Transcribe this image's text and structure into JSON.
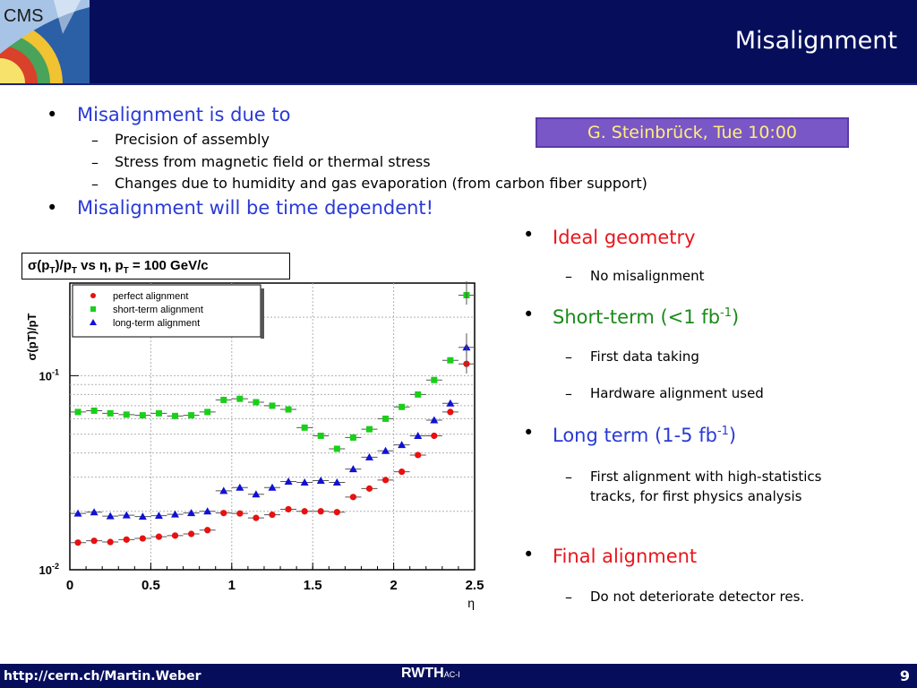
{
  "header": {
    "logo_text": "CMS",
    "title": "Misalignment"
  },
  "left": {
    "bullet1": "Misalignment is due to",
    "sub": [
      "Precision of assembly",
      "Stress from magnetic field or thermal stress",
      "Changes due to humidity and gas evaporation (from carbon fiber support)"
    ],
    "bullet2": "Misalignment will be time dependent!"
  },
  "tag": "G. Steinbrück, Tue 10:00",
  "right": {
    "items": [
      {
        "label": "Ideal geometry",
        "color": "#e8161c",
        "sub": [
          "No misalignment"
        ]
      },
      {
        "label": "Short-term (<1 fb-1)",
        "color": "#1a8a1a",
        "sub": [
          "First data taking",
          "Hardware alignment used"
        ]
      },
      {
        "label": "Long term (1-5 fb-1)",
        "color": "#2a3ad6",
        "sub": [
          "First alignment with high-statistics tracks, for first physics analysis"
        ]
      },
      {
        "label": "Final alignment",
        "color": "#e8161c",
        "sub": [
          "Do not deteriorate detector res."
        ]
      }
    ]
  },
  "plot_title": "σ(pT)/pT vs η, pT = 100 GeV/c",
  "chart_data": {
    "type": "scatter",
    "title": "σ(pT)/pT vs η, pT = 100 GeV/c",
    "xlabel": "η",
    "ylabel": "σ(pT)/pT",
    "xlim": [
      0,
      2.5
    ],
    "ylim": [
      0.01,
      0.3
    ],
    "yscale": "log",
    "xticks": [
      "0",
      "0.5",
      "1",
      "1.5",
      "2",
      "2.5"
    ],
    "yticks": [
      "10-2",
      "10-1"
    ],
    "grid": true,
    "legend": "top-left",
    "x": [
      0.05,
      0.15,
      0.25,
      0.35,
      0.45,
      0.55,
      0.65,
      0.75,
      0.85,
      0.95,
      1.05,
      1.15,
      1.25,
      1.35,
      1.45,
      1.55,
      1.65,
      1.75,
      1.85,
      1.95,
      2.05,
      2.15,
      2.25,
      2.35,
      2.45
    ],
    "series": [
      {
        "name": "perfect alignment",
        "color": "#e81010",
        "marker": "circle",
        "values": [
          0.0138,
          0.0141,
          0.0139,
          0.0143,
          0.0145,
          0.0148,
          0.015,
          0.0153,
          0.016,
          0.0196,
          0.0195,
          0.0185,
          0.0192,
          0.0205,
          0.02,
          0.02,
          0.0198,
          0.0237,
          0.0262,
          0.029,
          0.032,
          0.039,
          0.049,
          0.065,
          0.115
        ]
      },
      {
        "name": "short-term alignment",
        "color": "#18d018",
        "marker": "square",
        "values": [
          0.065,
          0.066,
          0.064,
          0.063,
          0.0625,
          0.064,
          0.062,
          0.0625,
          0.065,
          0.075,
          0.076,
          0.073,
          0.07,
          0.067,
          0.054,
          0.049,
          0.042,
          0.048,
          0.053,
          0.06,
          0.069,
          0.08,
          0.095,
          0.12,
          0.26
        ]
      },
      {
        "name": "long-term alignment",
        "color": "#1010d8",
        "marker": "triangle",
        "values": [
          0.0195,
          0.0198,
          0.0189,
          0.0191,
          0.0188,
          0.019,
          0.0193,
          0.0196,
          0.02,
          0.0255,
          0.0265,
          0.0245,
          0.0265,
          0.0285,
          0.0282,
          0.0288,
          0.0282,
          0.033,
          0.038,
          0.041,
          0.044,
          0.049,
          0.059,
          0.072,
          0.14
        ]
      }
    ]
  }
}
